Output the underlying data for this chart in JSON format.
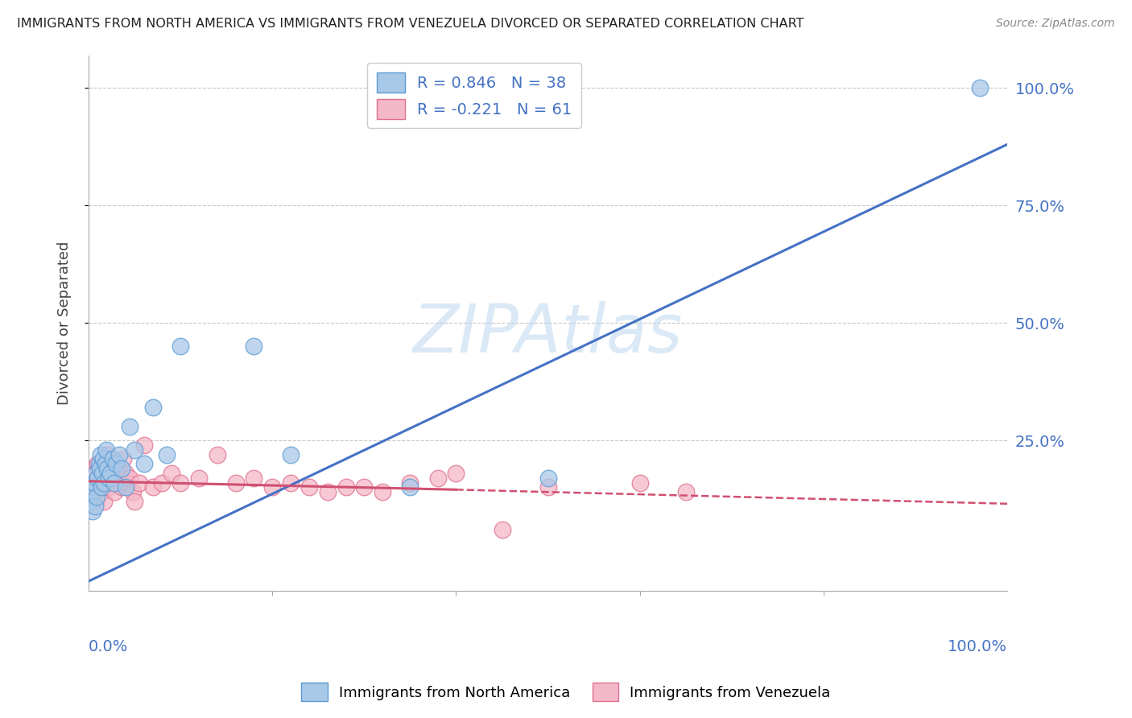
{
  "title": "IMMIGRANTS FROM NORTH AMERICA VS IMMIGRANTS FROM VENEZUELA DIVORCED OR SEPARATED CORRELATION CHART",
  "source": "Source: ZipAtlas.com",
  "ylabel": "Divorced or Separated",
  "right_yticks": [
    "100.0%",
    "75.0%",
    "50.0%",
    "25.0%"
  ],
  "right_ytick_vals": [
    1.0,
    0.75,
    0.5,
    0.25
  ],
  "watermark": "ZIPAtlas",
  "legend1_label": "R = 0.846   N = 38",
  "legend2_label": "R = -0.221   N = 61",
  "series1_color": "#a8c8e8",
  "series2_color": "#f4b8c8",
  "series1_edge": "#5b9bd5",
  "series2_edge": "#e07090",
  "trendline1_color": "#4472c4",
  "trendline2_color": "#d05070",
  "background_color": "#ffffff",
  "grid_color": "#c8c8c8",
  "north_america_x": [
    0.002,
    0.003,
    0.004,
    0.005,
    0.006,
    0.007,
    0.008,
    0.009,
    0.01,
    0.011,
    0.012,
    0.013,
    0.014,
    0.015,
    0.016,
    0.017,
    0.018,
    0.019,
    0.02,
    0.022,
    0.024,
    0.026,
    0.028,
    0.03,
    0.033,
    0.036,
    0.04,
    0.045,
    0.05,
    0.06,
    0.07,
    0.085,
    0.1,
    0.18,
    0.22,
    0.35,
    0.5,
    0.97
  ],
  "north_america_y": [
    0.12,
    0.15,
    0.1,
    0.14,
    0.16,
    0.11,
    0.18,
    0.13,
    0.17,
    0.2,
    0.19,
    0.22,
    0.15,
    0.18,
    0.21,
    0.16,
    0.2,
    0.23,
    0.19,
    0.17,
    0.18,
    0.21,
    0.16,
    0.2,
    0.22,
    0.19,
    0.15,
    0.28,
    0.23,
    0.2,
    0.32,
    0.22,
    0.45,
    0.45,
    0.22,
    0.15,
    0.17,
    1.0
  ],
  "venezuela_x": [
    0.001,
    0.002,
    0.003,
    0.004,
    0.005,
    0.006,
    0.007,
    0.008,
    0.009,
    0.01,
    0.011,
    0.012,
    0.013,
    0.014,
    0.015,
    0.016,
    0.017,
    0.018,
    0.019,
    0.02,
    0.021,
    0.022,
    0.023,
    0.024,
    0.025,
    0.026,
    0.028,
    0.03,
    0.032,
    0.034,
    0.036,
    0.038,
    0.04,
    0.042,
    0.045,
    0.048,
    0.05,
    0.055,
    0.06,
    0.07,
    0.08,
    0.09,
    0.1,
    0.12,
    0.14,
    0.16,
    0.18,
    0.2,
    0.22,
    0.24,
    0.26,
    0.28,
    0.3,
    0.32,
    0.35,
    0.38,
    0.4,
    0.45,
    0.5,
    0.6,
    0.65
  ],
  "venezuela_y": [
    0.15,
    0.13,
    0.17,
    0.14,
    0.19,
    0.16,
    0.18,
    0.12,
    0.17,
    0.2,
    0.15,
    0.18,
    0.16,
    0.14,
    0.19,
    0.17,
    0.12,
    0.2,
    0.16,
    0.22,
    0.18,
    0.15,
    0.21,
    0.17,
    0.16,
    0.2,
    0.14,
    0.18,
    0.19,
    0.17,
    0.15,
    0.21,
    0.18,
    0.16,
    0.17,
    0.14,
    0.12,
    0.16,
    0.24,
    0.15,
    0.16,
    0.18,
    0.16,
    0.17,
    0.22,
    0.16,
    0.17,
    0.15,
    0.16,
    0.15,
    0.14,
    0.15,
    0.15,
    0.14,
    0.16,
    0.17,
    0.18,
    0.06,
    0.15,
    0.16,
    0.14
  ],
  "xlim": [
    0.0,
    1.0
  ],
  "ylim": [
    -0.07,
    1.07
  ],
  "trendline1_x0": 0.0,
  "trendline1_y0": -0.05,
  "trendline1_x1": 1.0,
  "trendline1_y1": 0.88,
  "trendline2_solid_x0": 0.0,
  "trendline2_solid_y0": 0.163,
  "trendline2_solid_x1": 0.4,
  "trendline2_solid_y1": 0.145,
  "trendline2_dash_x0": 0.4,
  "trendline2_dash_y0": 0.145,
  "trendline2_dash_x1": 1.0,
  "trendline2_dash_y1": 0.115
}
